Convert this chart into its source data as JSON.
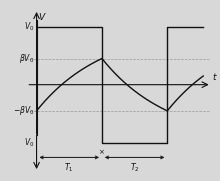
{
  "background_color": "#d8d8d8",
  "V0": 1.0,
  "beta": 0.45,
  "T1": 1.8,
  "T2": 1.8,
  "square_color": "#111111",
  "cap_color": "#111111",
  "axis_color": "#111111",
  "label_color": "#111111",
  "grid_line_color": "#999999",
  "xlabel": "t",
  "ylabel": "V",
  "figsize": [
    2.2,
    1.81
  ],
  "dpi": 100
}
